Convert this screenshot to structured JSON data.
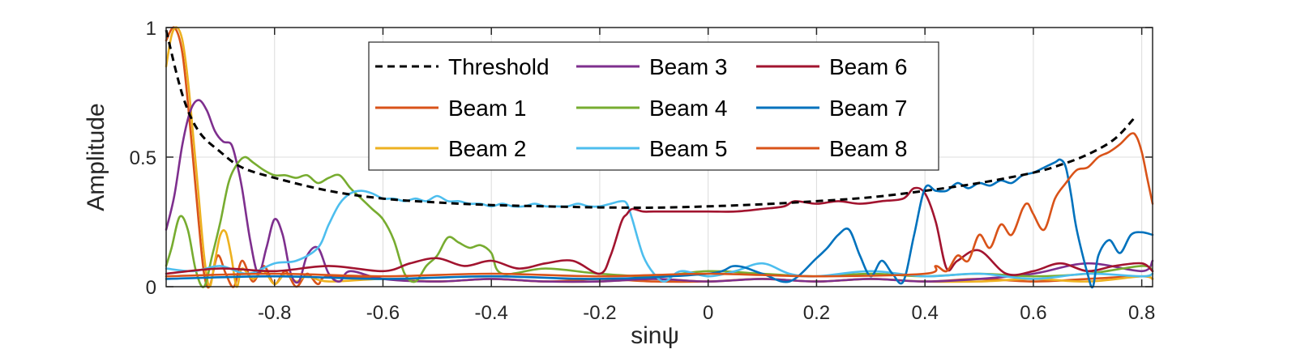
{
  "chart_data": {
    "type": "line",
    "xlabel": "sinψ",
    "ylabel": "Amplitude",
    "xlim": [
      -1,
      0.82
    ],
    "ylim": [
      0,
      1
    ],
    "x_ticks": [
      -0.8,
      -0.6,
      -0.4,
      -0.2,
      0,
      0.2,
      0.4,
      0.6,
      0.8
    ],
    "x_tick_labels": [
      "-0.8",
      "-0.6",
      "-0.4",
      "-0.2",
      "0",
      "0.2",
      "0.4",
      "0.6",
      "0.8"
    ],
    "y_ticks": [
      0,
      0.5,
      1
    ],
    "y_tick_labels": [
      "0",
      "0.5",
      "1"
    ],
    "grid": true,
    "legend_position": "top-center",
    "series": [
      {
        "name": "Threshold",
        "color": "#000000",
        "dash": true,
        "x": [
          -1.0,
          -0.97,
          -0.94,
          -0.9,
          -0.86,
          -0.8,
          -0.7,
          -0.6,
          -0.5,
          -0.4,
          -0.3,
          -0.2,
          -0.1,
          0.0,
          0.1,
          0.2,
          0.3,
          0.4,
          0.5,
          0.6,
          0.65,
          0.7,
          0.75,
          0.79
        ],
        "y": [
          0.99,
          0.74,
          0.6,
          0.52,
          0.46,
          0.42,
          0.37,
          0.34,
          0.325,
          0.315,
          0.31,
          0.306,
          0.305,
          0.31,
          0.318,
          0.33,
          0.345,
          0.37,
          0.4,
          0.44,
          0.47,
          0.51,
          0.57,
          0.66
        ]
      },
      {
        "name": "Beam 1",
        "color": "#D95319",
        "x": [
          -1.0,
          -0.985,
          -0.97,
          -0.955,
          -0.94,
          -0.93,
          -0.92,
          -0.905,
          -0.89,
          -0.875,
          -0.86,
          -0.84,
          -0.82,
          -0.8,
          -0.78,
          -0.76,
          -0.74,
          -0.72,
          -0.7,
          -0.6,
          -0.5,
          -0.4,
          -0.3,
          -0.2,
          -0.1,
          0.0,
          0.1,
          0.2,
          0.3,
          0.4,
          0.5,
          0.6,
          0.7,
          0.8,
          0.82
        ],
        "y": [
          0.95,
          1.0,
          0.9,
          0.6,
          0.25,
          0.05,
          0.0,
          0.12,
          0.05,
          0.0,
          0.1,
          0.02,
          0.08,
          0.01,
          0.06,
          0.0,
          0.05,
          0.01,
          0.04,
          0.03,
          0.02,
          0.03,
          0.02,
          0.03,
          0.02,
          0.02,
          0.03,
          0.02,
          0.03,
          0.02,
          0.03,
          0.02,
          0.03,
          0.04,
          0.03
        ]
      },
      {
        "name": "Beam 2",
        "color": "#EDB120",
        "x": [
          -1.0,
          -0.99,
          -0.98,
          -0.97,
          -0.96,
          -0.95,
          -0.94,
          -0.93,
          -0.92,
          -0.91,
          -0.9,
          -0.89,
          -0.88,
          -0.87,
          -0.86,
          -0.84,
          -0.82,
          -0.8,
          -0.78,
          -0.76,
          -0.74,
          -0.7,
          -0.6,
          -0.5,
          -0.4,
          -0.3,
          -0.2,
          -0.1,
          0.0,
          0.1,
          0.2,
          0.3,
          0.4,
          0.5,
          0.6,
          0.7,
          0.8,
          0.82
        ],
        "y": [
          0.85,
          0.97,
          1.0,
          0.95,
          0.8,
          0.58,
          0.35,
          0.12,
          0.0,
          0.1,
          0.2,
          0.21,
          0.12,
          0.0,
          0.07,
          0.03,
          0.06,
          0.01,
          0.05,
          0.02,
          0.04,
          0.02,
          0.03,
          0.02,
          0.03,
          0.02,
          0.02,
          0.03,
          0.02,
          0.03,
          0.02,
          0.03,
          0.02,
          0.02,
          0.03,
          0.02,
          0.04,
          0.03
        ]
      },
      {
        "name": "Beam 3",
        "color": "#7E2F8E",
        "x": [
          -1.0,
          -0.985,
          -0.97,
          -0.955,
          -0.94,
          -0.925,
          -0.91,
          -0.895,
          -0.88,
          -0.87,
          -0.86,
          -0.845,
          -0.83,
          -0.815,
          -0.8,
          -0.785,
          -0.77,
          -0.755,
          -0.74,
          -0.72,
          -0.7,
          -0.68,
          -0.66,
          -0.6,
          -0.5,
          -0.4,
          -0.3,
          -0.2,
          -0.1,
          0.0,
          0.1,
          0.2,
          0.3,
          0.4,
          0.5,
          0.6,
          0.7,
          0.8,
          0.82
        ],
        "y": [
          0.22,
          0.35,
          0.55,
          0.68,
          0.72,
          0.68,
          0.6,
          0.56,
          0.55,
          0.48,
          0.38,
          0.18,
          0.05,
          0.15,
          0.26,
          0.2,
          0.05,
          0.02,
          0.12,
          0.15,
          0.05,
          0.02,
          0.06,
          0.03,
          0.02,
          0.03,
          0.02,
          0.02,
          0.03,
          0.02,
          0.03,
          0.02,
          0.03,
          0.02,
          0.03,
          0.05,
          0.09,
          0.06,
          0.1
        ]
      },
      {
        "name": "Beam 4",
        "color": "#77AC30",
        "x": [
          -1.0,
          -0.99,
          -0.975,
          -0.96,
          -0.945,
          -0.93,
          -0.915,
          -0.9,
          -0.885,
          -0.87,
          -0.855,
          -0.84,
          -0.82,
          -0.8,
          -0.78,
          -0.76,
          -0.74,
          -0.72,
          -0.7,
          -0.68,
          -0.66,
          -0.64,
          -0.62,
          -0.6,
          -0.58,
          -0.56,
          -0.54,
          -0.52,
          -0.5,
          -0.48,
          -0.46,
          -0.44,
          -0.42,
          -0.4,
          -0.38,
          -0.3,
          -0.2,
          -0.1,
          0.0,
          0.1,
          0.2,
          0.3,
          0.4,
          0.5,
          0.6,
          0.7,
          0.8,
          0.82
        ],
        "y": [
          0.08,
          0.15,
          0.27,
          0.22,
          0.06,
          0.0,
          0.12,
          0.25,
          0.4,
          0.47,
          0.5,
          0.48,
          0.45,
          0.43,
          0.43,
          0.42,
          0.43,
          0.4,
          0.42,
          0.43,
          0.38,
          0.34,
          0.3,
          0.26,
          0.18,
          0.05,
          0.02,
          0.08,
          0.12,
          0.19,
          0.17,
          0.15,
          0.16,
          0.13,
          0.05,
          0.07,
          0.05,
          0.04,
          0.06,
          0.05,
          0.04,
          0.05,
          0.04,
          0.05,
          0.04,
          0.05,
          0.08,
          0.06
        ]
      },
      {
        "name": "Beam 5",
        "color": "#4DBEEE",
        "x": [
          -1.0,
          -0.95,
          -0.9,
          -0.85,
          -0.8,
          -0.76,
          -0.72,
          -0.7,
          -0.68,
          -0.66,
          -0.64,
          -0.62,
          -0.6,
          -0.58,
          -0.56,
          -0.54,
          -0.52,
          -0.5,
          -0.48,
          -0.46,
          -0.44,
          -0.42,
          -0.4,
          -0.38,
          -0.36,
          -0.34,
          -0.32,
          -0.3,
          -0.28,
          -0.26,
          -0.24,
          -0.22,
          -0.2,
          -0.18,
          -0.16,
          -0.15,
          -0.14,
          -0.12,
          -0.1,
          -0.08,
          -0.05,
          0.0,
          0.05,
          0.1,
          0.15,
          0.2,
          0.3,
          0.4,
          0.5,
          0.6,
          0.7,
          0.8,
          0.82
        ],
        "y": [
          0.07,
          0.06,
          0.08,
          0.05,
          0.09,
          0.1,
          0.15,
          0.24,
          0.32,
          0.36,
          0.37,
          0.36,
          0.34,
          0.34,
          0.33,
          0.34,
          0.33,
          0.35,
          0.33,
          0.33,
          0.32,
          0.32,
          0.31,
          0.32,
          0.31,
          0.31,
          0.32,
          0.31,
          0.31,
          0.31,
          0.32,
          0.31,
          0.31,
          0.32,
          0.33,
          0.32,
          0.26,
          0.12,
          0.05,
          0.02,
          0.06,
          0.04,
          0.06,
          0.09,
          0.05,
          0.04,
          0.06,
          0.04,
          0.05,
          0.03,
          0.05,
          0.04,
          0.05
        ]
      },
      {
        "name": "Beam 6",
        "color": "#A2142F",
        "x": [
          -1.0,
          -0.9,
          -0.8,
          -0.7,
          -0.6,
          -0.55,
          -0.5,
          -0.45,
          -0.4,
          -0.35,
          -0.3,
          -0.25,
          -0.2,
          -0.18,
          -0.16,
          -0.15,
          -0.14,
          -0.12,
          -0.1,
          -0.05,
          0.0,
          0.05,
          0.1,
          0.14,
          0.16,
          0.2,
          0.24,
          0.28,
          0.32,
          0.36,
          0.38,
          0.4,
          0.42,
          0.44,
          0.46,
          0.5,
          0.55,
          0.6,
          0.65,
          0.7,
          0.75,
          0.8,
          0.82
        ],
        "y": [
          0.05,
          0.07,
          0.06,
          0.08,
          0.06,
          0.09,
          0.11,
          0.08,
          0.1,
          0.07,
          0.09,
          0.1,
          0.05,
          0.12,
          0.25,
          0.28,
          0.3,
          0.29,
          0.29,
          0.29,
          0.29,
          0.29,
          0.3,
          0.31,
          0.33,
          0.32,
          0.33,
          0.32,
          0.33,
          0.34,
          0.38,
          0.36,
          0.25,
          0.07,
          0.1,
          0.14,
          0.05,
          0.06,
          0.09,
          0.06,
          0.08,
          0.09,
          0.06
        ]
      },
      {
        "name": "Beam 7",
        "color": "#0072BD",
        "x": [
          -1.0,
          -0.8,
          -0.6,
          -0.4,
          -0.2,
          0.0,
          0.05,
          0.1,
          0.15,
          0.2,
          0.22,
          0.24,
          0.26,
          0.28,
          0.3,
          0.32,
          0.34,
          0.36,
          0.38,
          0.4,
          0.42,
          0.44,
          0.46,
          0.48,
          0.5,
          0.52,
          0.54,
          0.56,
          0.58,
          0.6,
          0.62,
          0.64,
          0.65,
          0.66,
          0.67,
          0.68,
          0.7,
          0.71,
          0.72,
          0.74,
          0.76,
          0.78,
          0.8,
          0.82
        ],
        "y": [
          0.03,
          0.04,
          0.03,
          0.04,
          0.03,
          0.05,
          0.08,
          0.05,
          0.02,
          0.11,
          0.15,
          0.2,
          0.22,
          0.12,
          0.04,
          0.1,
          0.05,
          0.02,
          0.2,
          0.38,
          0.37,
          0.37,
          0.4,
          0.38,
          0.4,
          0.39,
          0.41,
          0.4,
          0.43,
          0.44,
          0.46,
          0.48,
          0.49,
          0.46,
          0.35,
          0.22,
          0.05,
          0.0,
          0.12,
          0.18,
          0.13,
          0.2,
          0.21,
          0.2
        ]
      },
      {
        "name": "Beam 8",
        "color": "#D95319",
        "x": [
          -1.0,
          -0.8,
          -0.6,
          -0.4,
          -0.2,
          0.0,
          0.2,
          0.4,
          0.42,
          0.44,
          0.46,
          0.48,
          0.5,
          0.52,
          0.54,
          0.56,
          0.58,
          0.59,
          0.6,
          0.62,
          0.64,
          0.66,
          0.68,
          0.7,
          0.72,
          0.74,
          0.76,
          0.78,
          0.79,
          0.8,
          0.81,
          0.82
        ],
        "y": [
          0.04,
          0.05,
          0.04,
          0.05,
          0.04,
          0.05,
          0.04,
          0.05,
          0.08,
          0.06,
          0.12,
          0.1,
          0.2,
          0.15,
          0.24,
          0.2,
          0.3,
          0.32,
          0.28,
          0.22,
          0.34,
          0.4,
          0.45,
          0.46,
          0.5,
          0.52,
          0.55,
          0.59,
          0.58,
          0.52,
          0.42,
          0.32
        ]
      }
    ]
  }
}
